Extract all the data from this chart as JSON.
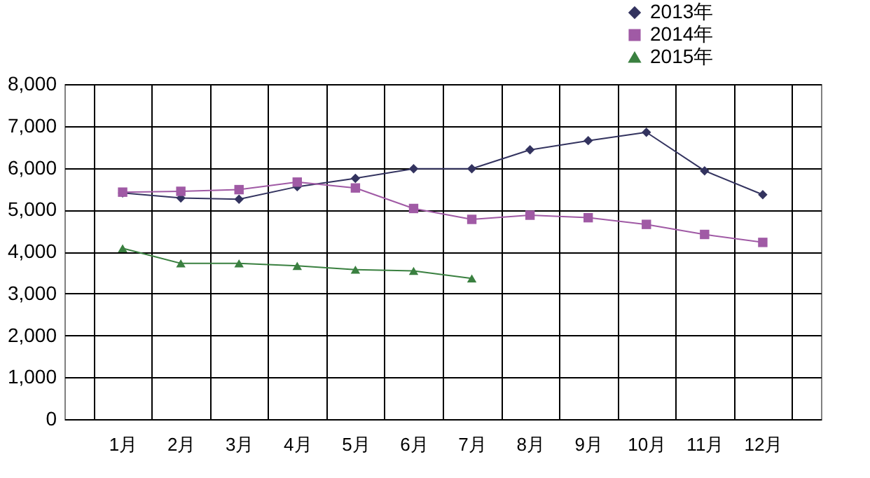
{
  "chart_data": {
    "type": "line",
    "categories": [
      "1月",
      "2月",
      "3月",
      "4月",
      "5月",
      "6月",
      "7月",
      "8月",
      "9月",
      "10月",
      "11月",
      "12月"
    ],
    "series": [
      {
        "name": "2013年",
        "color": "#33335f",
        "marker": "diamond",
        "values": [
          5400,
          5280,
          5250,
          5550,
          5750,
          5980,
          5980,
          6430,
          6650,
          6850,
          5930,
          5360
        ]
      },
      {
        "name": "2014年",
        "color": "#a05aa5",
        "marker": "square",
        "values": [
          5420,
          5440,
          5480,
          5660,
          5520,
          5030,
          4770,
          4870,
          4810,
          4650,
          4410,
          4220
        ]
      },
      {
        "name": "2015年",
        "color": "#3a8040",
        "marker": "triangle",
        "values": [
          4080,
          3720,
          3720,
          3660,
          3570,
          3540,
          3360,
          null,
          null,
          null,
          null,
          null
        ]
      }
    ],
    "ylim": [
      0,
      8000
    ],
    "yticks": [
      0,
      {
        "value": 1000,
        "label": "1,000"
      },
      {
        "value": 2000,
        "label": "2,000"
      },
      {
        "value": 3000,
        "label": "3,000"
      },
      {
        "value": 4000,
        "label": "4,000"
      },
      {
        "value": 5000,
        "label": "5,000"
      },
      {
        "value": 6000,
        "label": "6,000"
      },
      {
        "value": 7000,
        "label": "7,000"
      },
      {
        "value": 8000,
        "label": "8,000"
      }
    ],
    "grid": true,
    "legend": "top right"
  }
}
